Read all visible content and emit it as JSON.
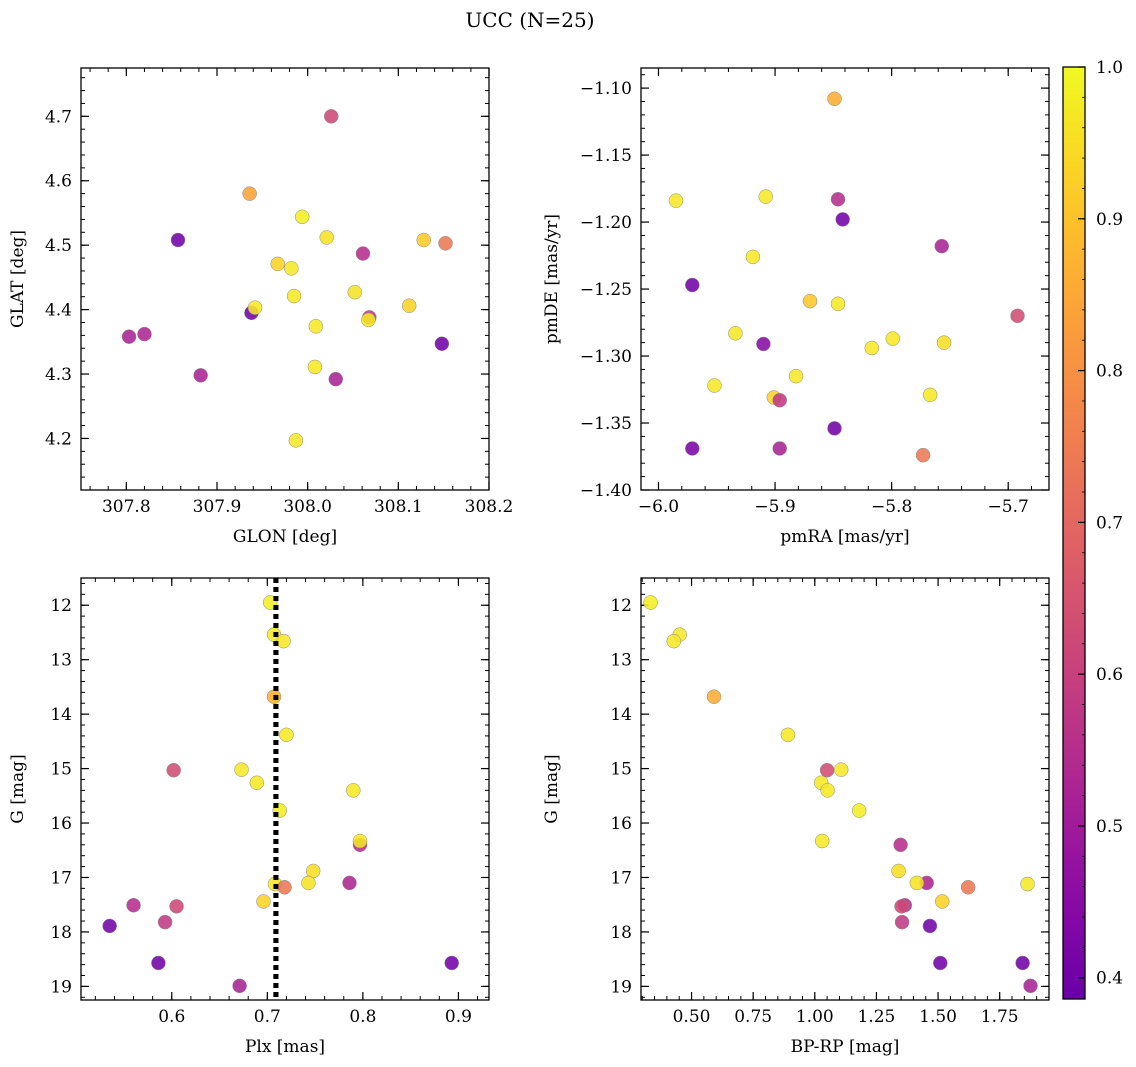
{
  "figure": {
    "title": "UCC (N=25)"
  },
  "colorbar": {
    "range": [
      0.386,
      1.0
    ],
    "ticks": [
      0.4,
      0.5,
      0.6,
      0.7,
      0.8,
      0.9,
      1.0
    ],
    "tick_labels": [
      "0.4",
      "0.5",
      "0.6",
      "0.7",
      "0.8",
      "0.9",
      "1.0"
    ],
    "colormap": "plasma"
  },
  "chart_data": [
    {
      "type": "scatter",
      "xlabel": "GLON [deg]",
      "ylabel": "GLAT [deg]",
      "xlim": [
        307.75,
        308.2
      ],
      "ylim": [
        4.12,
        4.775
      ],
      "xticks": [
        307.8,
        307.9,
        308.0,
        308.1,
        308.2
      ],
      "xtick_labels": [
        "307.8",
        "307.9",
        "308.0",
        "308.1",
        "308.2"
      ],
      "yticks": [
        4.2,
        4.3,
        4.4,
        4.5,
        4.6,
        4.7
      ],
      "ytick_labels": [
        "4.2",
        "4.3",
        "4.4",
        "4.5",
        "4.6",
        "4.7"
      ],
      "points": [
        {
          "x": 307.803,
          "y": 4.358,
          "c": 0.52
        },
        {
          "x": 307.82,
          "y": 4.362,
          "c": 0.53
        },
        {
          "x": 307.857,
          "y": 4.508,
          "c": 0.4
        },
        {
          "x": 307.882,
          "y": 4.298,
          "c": 0.52
        },
        {
          "x": 307.936,
          "y": 4.58,
          "c": 0.84
        },
        {
          "x": 307.938,
          "y": 4.395,
          "c": 0.4
        },
        {
          "x": 307.942,
          "y": 4.403,
          "c": 0.97
        },
        {
          "x": 307.967,
          "y": 4.471,
          "c": 0.93
        },
        {
          "x": 307.982,
          "y": 4.464,
          "c": 0.97
        },
        {
          "x": 307.985,
          "y": 4.421,
          "c": 0.97
        },
        {
          "x": 307.987,
          "y": 4.197,
          "c": 0.97
        },
        {
          "x": 307.994,
          "y": 4.544,
          "c": 0.98
        },
        {
          "x": 308.008,
          "y": 4.311,
          "c": 0.97
        },
        {
          "x": 308.009,
          "y": 4.374,
          "c": 0.97
        },
        {
          "x": 308.021,
          "y": 4.512,
          "c": 0.96
        },
        {
          "x": 308.026,
          "y": 4.7,
          "c": 0.62
        },
        {
          "x": 308.031,
          "y": 4.292,
          "c": 0.52
        },
        {
          "x": 308.052,
          "y": 4.427,
          "c": 0.96
        },
        {
          "x": 308.061,
          "y": 4.487,
          "c": 0.55
        },
        {
          "x": 308.068,
          "y": 4.388,
          "c": 0.58
        },
        {
          "x": 308.067,
          "y": 4.384,
          "c": 0.97
        },
        {
          "x": 308.112,
          "y": 4.406,
          "c": 0.93
        },
        {
          "x": 308.128,
          "y": 4.508,
          "c": 0.92
        },
        {
          "x": 308.148,
          "y": 4.347,
          "c": 0.4
        },
        {
          "x": 308.152,
          "y": 4.503,
          "c": 0.74
        }
      ]
    },
    {
      "type": "scatter",
      "xlabel": "pmRA [mas/yr]",
      "ylabel": "pmDE [mas/yr]",
      "xlim": [
        -6.015,
        -5.665
      ],
      "ylim": [
        -1.4,
        -1.085
      ],
      "xticks": [
        -6.0,
        -5.9,
        -5.8,
        -5.7
      ],
      "xtick_labels": [
        "−6.0",
        "−5.9",
        "−5.8",
        "−5.7"
      ],
      "yticks": [
        -1.4,
        -1.35,
        -1.3,
        -1.25,
        -1.2,
        -1.15,
        -1.1
      ],
      "ytick_labels": [
        "−1.40",
        "−1.35",
        "−1.30",
        "−1.25",
        "−1.20",
        "−1.15",
        "−1.10"
      ],
      "points": [
        {
          "x": -5.985,
          "y": -1.184,
          "c": 0.97
        },
        {
          "x": -5.971,
          "y": -1.247,
          "c": 0.4
        },
        {
          "x": -5.971,
          "y": -1.369,
          "c": 0.42
        },
        {
          "x": -5.934,
          "y": -1.283,
          "c": 0.97
        },
        {
          "x": -5.952,
          "y": -1.322,
          "c": 0.97
        },
        {
          "x": -5.919,
          "y": -1.226,
          "c": 0.97
        },
        {
          "x": -5.908,
          "y": -1.181,
          "c": 0.97
        },
        {
          "x": -5.91,
          "y": -1.291,
          "c": 0.45
        },
        {
          "x": -5.901,
          "y": -1.331,
          "c": 0.93
        },
        {
          "x": -5.896,
          "y": -1.333,
          "c": 0.58
        },
        {
          "x": -5.896,
          "y": -1.369,
          "c": 0.52
        },
        {
          "x": -5.882,
          "y": -1.315,
          "c": 0.97
        },
        {
          "x": -5.87,
          "y": -1.259,
          "c": 0.91
        },
        {
          "x": -5.849,
          "y": -1.108,
          "c": 0.86
        },
        {
          "x": -5.849,
          "y": -1.354,
          "c": 0.4
        },
        {
          "x": -5.846,
          "y": -1.183,
          "c": 0.55
        },
        {
          "x": -5.846,
          "y": -1.261,
          "c": 0.97
        },
        {
          "x": -5.842,
          "y": -1.198,
          "c": 0.4
        },
        {
          "x": -5.817,
          "y": -1.294,
          "c": 0.97
        },
        {
          "x": -5.799,
          "y": -1.287,
          "c": 0.97
        },
        {
          "x": -5.773,
          "y": -1.374,
          "c": 0.74
        },
        {
          "x": -5.767,
          "y": -1.329,
          "c": 0.97
        },
        {
          "x": -5.757,
          "y": -1.218,
          "c": 0.52
        },
        {
          "x": -5.755,
          "y": -1.29,
          "c": 0.95
        },
        {
          "x": -5.692,
          "y": -1.27,
          "c": 0.63
        }
      ]
    },
    {
      "type": "scatter",
      "xlabel": "Plx [mas]",
      "ylabel": "G [mag]",
      "xlim": [
        0.505,
        0.932
      ],
      "ylim": [
        19.25,
        11.5
      ],
      "y_inverted": true,
      "xticks": [
        0.6,
        0.7,
        0.8,
        0.9
      ],
      "xtick_labels": [
        "0.6",
        "0.7",
        "0.8",
        "0.9"
      ],
      "yticks": [
        12,
        13,
        14,
        15,
        16,
        17,
        18,
        19
      ],
      "ytick_labels": [
        "12",
        "13",
        "14",
        "15",
        "16",
        "17",
        "18",
        "19"
      ],
      "vline": {
        "x": 0.709,
        "style": "dotted"
      },
      "points": [
        {
          "x": 0.703,
          "y": 11.95,
          "c": 0.98
        },
        {
          "x": 0.707,
          "y": 12.54,
          "c": 0.97
        },
        {
          "x": 0.717,
          "y": 12.66,
          "c": 0.97
        },
        {
          "x": 0.707,
          "y": 13.68,
          "c": 0.86
        },
        {
          "x": 0.72,
          "y": 14.38,
          "c": 0.97
        },
        {
          "x": 0.602,
          "y": 15.03,
          "c": 0.63
        },
        {
          "x": 0.673,
          "y": 15.02,
          "c": 0.97
        },
        {
          "x": 0.689,
          "y": 15.26,
          "c": 0.97
        },
        {
          "x": 0.79,
          "y": 15.4,
          "c": 0.97
        },
        {
          "x": 0.713,
          "y": 15.77,
          "c": 0.98
        },
        {
          "x": 0.797,
          "y": 16.4,
          "c": 0.55
        },
        {
          "x": 0.797,
          "y": 16.33,
          "c": 0.97
        },
        {
          "x": 0.748,
          "y": 16.88,
          "c": 0.95
        },
        {
          "x": 0.786,
          "y": 17.1,
          "c": 0.53
        },
        {
          "x": 0.743,
          "y": 17.1,
          "c": 0.96
        },
        {
          "x": 0.708,
          "y": 17.12,
          "c": 0.97
        },
        {
          "x": 0.718,
          "y": 17.18,
          "c": 0.74
        },
        {
          "x": 0.696,
          "y": 17.44,
          "c": 0.93
        },
        {
          "x": 0.56,
          "y": 17.51,
          "c": 0.55
        },
        {
          "x": 0.605,
          "y": 17.53,
          "c": 0.62
        },
        {
          "x": 0.593,
          "y": 17.82,
          "c": 0.58
        },
        {
          "x": 0.535,
          "y": 17.89,
          "c": 0.4
        },
        {
          "x": 0.586,
          "y": 18.57,
          "c": 0.4
        },
        {
          "x": 0.893,
          "y": 18.57,
          "c": 0.4
        },
        {
          "x": 0.671,
          "y": 18.99,
          "c": 0.52
        }
      ]
    },
    {
      "type": "scatter",
      "xlabel": "BP-RP [mag]",
      "ylabel": "G [mag]",
      "xlim": [
        0.295,
        1.95
      ],
      "ylim": [
        19.25,
        11.5
      ],
      "y_inverted": true,
      "xticks": [
        0.5,
        0.75,
        1.0,
        1.25,
        1.5,
        1.75
      ],
      "xtick_labels": [
        "0.50",
        "0.75",
        "1.00",
        "1.25",
        "1.50",
        "1.75"
      ],
      "yticks": [
        12,
        13,
        14,
        15,
        16,
        17,
        18,
        19
      ],
      "ytick_labels": [
        "12",
        "13",
        "14",
        "15",
        "16",
        "17",
        "18",
        "19"
      ],
      "points": [
        {
          "x": 0.334,
          "y": 11.95,
          "c": 0.98
        },
        {
          "x": 0.452,
          "y": 12.54,
          "c": 0.97
        },
        {
          "x": 0.428,
          "y": 12.66,
          "c": 0.97
        },
        {
          "x": 0.591,
          "y": 13.68,
          "c": 0.86
        },
        {
          "x": 0.891,
          "y": 14.38,
          "c": 0.97
        },
        {
          "x": 1.05,
          "y": 15.03,
          "c": 0.63
        },
        {
          "x": 1.107,
          "y": 15.02,
          "c": 0.97
        },
        {
          "x": 1.026,
          "y": 15.26,
          "c": 0.97
        },
        {
          "x": 1.052,
          "y": 15.4,
          "c": 0.97
        },
        {
          "x": 1.18,
          "y": 15.77,
          "c": 0.98
        },
        {
          "x": 1.348,
          "y": 16.4,
          "c": 0.55
        },
        {
          "x": 1.03,
          "y": 16.33,
          "c": 0.97
        },
        {
          "x": 1.34,
          "y": 16.88,
          "c": 0.95
        },
        {
          "x": 1.454,
          "y": 17.1,
          "c": 0.53
        },
        {
          "x": 1.414,
          "y": 17.1,
          "c": 0.96
        },
        {
          "x": 1.863,
          "y": 17.12,
          "c": 0.97
        },
        {
          "x": 1.622,
          "y": 17.18,
          "c": 0.74
        },
        {
          "x": 1.517,
          "y": 17.44,
          "c": 0.93
        },
        {
          "x": 1.365,
          "y": 17.51,
          "c": 0.55
        },
        {
          "x": 1.352,
          "y": 17.53,
          "c": 0.62
        },
        {
          "x": 1.354,
          "y": 17.82,
          "c": 0.58
        },
        {
          "x": 1.467,
          "y": 17.89,
          "c": 0.4
        },
        {
          "x": 1.509,
          "y": 18.57,
          "c": 0.4
        },
        {
          "x": 1.843,
          "y": 18.57,
          "c": 0.4
        },
        {
          "x": 1.875,
          "y": 18.99,
          "c": 0.52
        }
      ]
    }
  ]
}
